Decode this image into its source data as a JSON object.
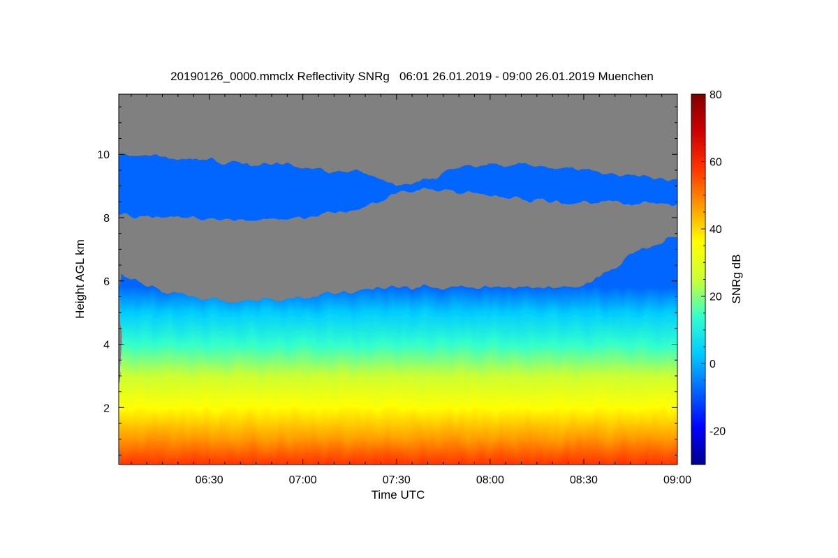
{
  "chart_data": {
    "type": "heatmap",
    "title": "20190126_0000.mmclx Reflectivity SNRg   06:01 26.01.2019 - 09:00 26.01.2019 Muenchen",
    "xlabel": "Time UTC",
    "ylabel": "Height AGL km",
    "colorbar_label": "SNRg dB",
    "x_range": [
      "06:01",
      "09:00"
    ],
    "x_ticks": [
      "06:30",
      "07:00",
      "07:30",
      "08:00",
      "08:30",
      "09:00"
    ],
    "y_range": [
      0.2,
      11.9
    ],
    "y_ticks": [
      2,
      4,
      6,
      8,
      10
    ],
    "color_range": [
      -30,
      80
    ],
    "colorbar_ticks": [
      -20,
      0,
      20,
      40,
      60,
      80
    ],
    "colormap": [
      "#00008b",
      "#0000ff",
      "#0066ff",
      "#00ccff",
      "#33ffcc",
      "#ccff33",
      "#ffff00",
      "#ff9900",
      "#ff3300",
      "#cc0000",
      "#800000"
    ],
    "background_color": "#808080",
    "layers": [
      {
        "name": "upper cloud layer",
        "time": [
          "06:01",
          "06:20",
          "06:40",
          "07:00",
          "07:20",
          "07:30",
          "07:40",
          "07:50",
          "08:00",
          "08:20",
          "08:40",
          "09:00"
        ],
        "top_km": [
          10.0,
          9.9,
          9.7,
          9.6,
          9.4,
          9.0,
          9.2,
          9.6,
          9.7,
          9.6,
          9.4,
          9.2
        ],
        "base_km": [
          8.1,
          8.0,
          7.9,
          8.0,
          8.3,
          8.8,
          8.9,
          8.8,
          8.7,
          8.5,
          8.5,
          8.4
        ],
        "snr_db": -12
      },
      {
        "name": "lower precipitation layer",
        "time": [
          "06:01",
          "06:15",
          "06:30",
          "06:50",
          "07:10",
          "07:30",
          "07:50",
          "08:10",
          "08:30",
          "08:45",
          "09:00"
        ],
        "top_km": [
          6.2,
          5.7,
          5.4,
          5.4,
          5.6,
          5.8,
          5.8,
          5.8,
          5.8,
          6.8,
          7.4
        ],
        "profile_km": [
          0.2,
          1.0,
          2.0,
          3.0,
          4.0,
          5.0,
          5.8
        ],
        "profile_snr_db": [
          55,
          48,
          40,
          30,
          15,
          0,
          -10
        ]
      }
    ],
    "grid": false,
    "colorbar_position": "right"
  }
}
